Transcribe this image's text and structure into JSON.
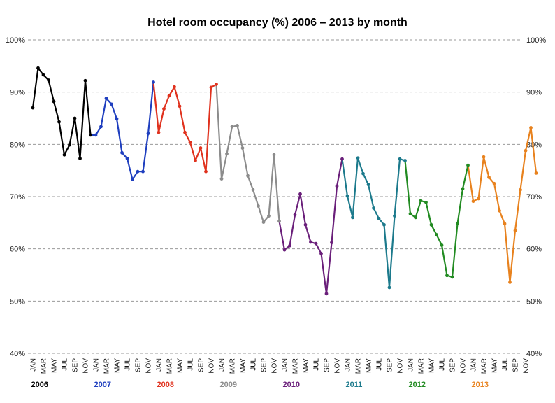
{
  "chart_data": {
    "type": "line",
    "title": "Hotel room occupancy (%) 2006 – 2013 by month",
    "xlabel": "",
    "ylabel": "",
    "ylim": [
      40,
      100
    ],
    "yticks": [
      "40%",
      "50%",
      "60%",
      "70%",
      "80%",
      "90%",
      "100%"
    ],
    "ytick_values": [
      40,
      50,
      60,
      70,
      80,
      90,
      100
    ],
    "y_axis_both_sides": true,
    "grid": true,
    "month_labels": [
      "JAN",
      "MAR",
      "MAY",
      "JUL",
      "SEP",
      "NOV"
    ],
    "series": [
      {
        "name": "2006",
        "color": "#000000",
        "values": [
          87.0,
          94.6,
          93.3,
          92.3,
          88.2,
          84.3,
          78.0,
          79.9,
          85.0,
          77.3,
          92.2,
          81.8
        ]
      },
      {
        "name": "2007",
        "color": "#1f3fbf",
        "values": [
          81.8,
          83.4,
          88.8,
          87.7,
          84.9,
          78.4,
          77.3,
          73.3,
          74.8,
          74.8,
          82.1,
          91.9
        ]
      },
      {
        "name": "2008",
        "color": "#e0321e",
        "values": [
          82.3,
          86.8,
          89.3,
          91.0,
          87.3,
          82.3,
          80.4,
          76.9,
          79.3,
          74.8,
          90.9,
          91.5
        ]
      },
      {
        "name": "2009",
        "color": "#8c8c8c",
        "values": [
          73.4,
          78.2,
          83.4,
          83.6,
          79.3,
          74.0,
          71.3,
          68.2,
          65.1,
          66.3,
          78.0,
          65.3
        ]
      },
      {
        "name": "2010",
        "color": "#6a1f7a",
        "values": [
          59.8,
          60.6,
          66.5,
          70.5,
          64.6,
          61.3,
          61.0,
          59.1,
          51.4,
          61.2,
          72.0,
          77.2
        ]
      },
      {
        "name": "2011",
        "color": "#1c7a8c",
        "values": [
          70.1,
          66.0,
          77.4,
          74.4,
          72.3,
          67.8,
          65.8,
          64.6,
          52.6,
          66.3,
          77.2,
          76.9
        ]
      },
      {
        "name": "2012",
        "color": "#228b22",
        "values": [
          66.7,
          66.0,
          69.2,
          68.9,
          64.6,
          62.7,
          60.7,
          54.9,
          54.6,
          64.8,
          71.5,
          76.0
        ]
      },
      {
        "name": "2013",
        "color": "#e8821e",
        "values": [
          69.1,
          69.6,
          77.6,
          73.7,
          72.5,
          67.3,
          64.8,
          53.6,
          63.5,
          71.3,
          78.8,
          83.2
        ]
      }
    ],
    "trailing_values": [
      74.5
    ]
  }
}
